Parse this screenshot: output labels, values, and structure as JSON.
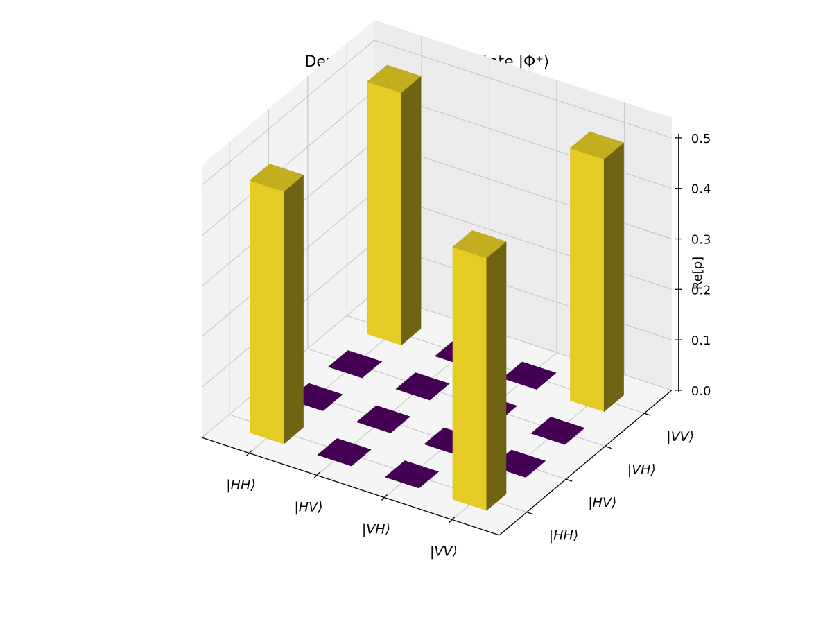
{
  "chart_data": {
    "type": "bar3d",
    "title": "Density Matrix of Bell State |Φ⁺⟩",
    "xlabel": "",
    "ylabel": "",
    "zlabel": "Re[ρ]",
    "x_categories": [
      "|HH⟩",
      "|HV⟩",
      "|VH⟩",
      "|VV⟩"
    ],
    "y_categories": [
      "|HH⟩",
      "|HV⟩",
      "|VH⟩",
      "|VV⟩"
    ],
    "zlim": [
      0,
      0.5
    ],
    "z_ticks": [
      "0.0",
      "0.1",
      "0.2",
      "0.3",
      "0.4",
      "0.5"
    ],
    "values": [
      [
        0.5,
        0.0,
        0.0,
        0.5
      ],
      [
        0.0,
        0.0,
        0.0,
        0.0
      ],
      [
        0.0,
        0.0,
        0.0,
        0.0
      ],
      [
        0.5,
        0.0,
        0.0,
        0.5
      ]
    ],
    "colormap_colors": {
      "low": "#440154",
      "high": "#fde725"
    },
    "grid": true
  }
}
